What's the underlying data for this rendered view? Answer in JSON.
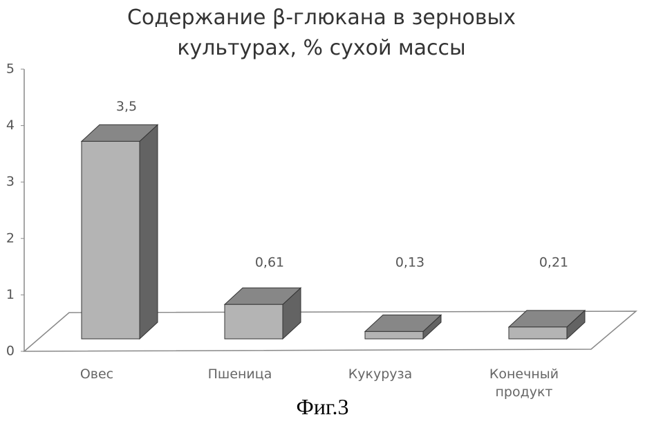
{
  "chart_data": {
    "type": "bar3d",
    "title": "Содержание β-глюкана в зерновых культурах, % сухой массы",
    "categories": [
      "Овес",
      "Пшеница",
      "Кукуруза",
      "Конечный продукт"
    ],
    "values": [
      3.5,
      0.61,
      0.13,
      0.21
    ],
    "value_labels": [
      "3,5",
      "0,61",
      "0,13",
      "0,21"
    ],
    "color": "#b4b4b4",
    "ylim": [
      0,
      5
    ],
    "yticks": [
      0,
      1,
      2,
      3,
      4,
      5
    ],
    "caption": "Фиг.3"
  }
}
